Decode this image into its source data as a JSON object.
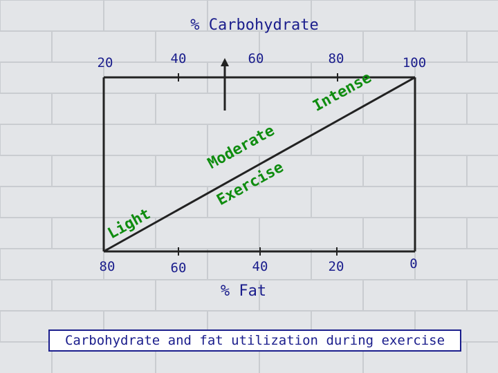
{
  "diagram": {
    "carb_axis_title": "% Carbohydrate",
    "fat_axis_title": "% Fat",
    "carb_ticks": [
      "20",
      "40",
      "60",
      "80",
      "100"
    ],
    "fat_ticks": [
      "80",
      "60",
      "40",
      "20",
      "0"
    ],
    "zones": {
      "light": "Light",
      "moderate": "Moderate",
      "exercise": "Exercise",
      "intense": "Intense"
    },
    "caption": "Carbohydrate and fat utilization during exercise"
  },
  "colors": {
    "axis_text": "#1a1d8c",
    "zone_text": "#0f8c0f",
    "lines": "#222222",
    "caption_border": "#1a1d8c"
  }
}
